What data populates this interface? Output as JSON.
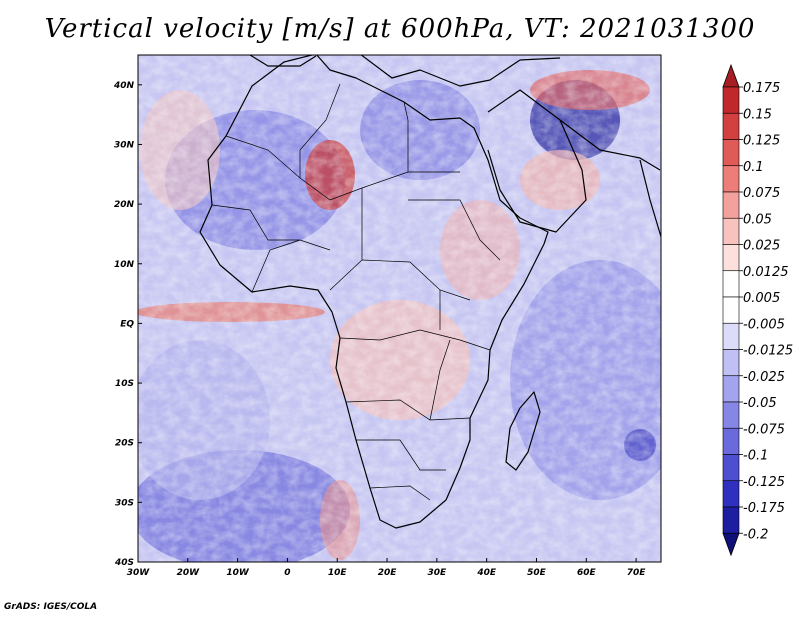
{
  "title": "Vertical velocity [m/s] at 600hPa, VT: 2021031300",
  "footer": "GrADS: IGES/COLA",
  "map": {
    "region": "Africa",
    "lon_range": [
      -30,
      75
    ],
    "lat_range": [
      -40,
      45
    ],
    "x_ticks": [
      "30W",
      "20W",
      "10W",
      "0",
      "10E",
      "20E",
      "30E",
      "40E",
      "50E",
      "60E",
      "70E"
    ],
    "x_tick_values": [
      -30,
      -20,
      -10,
      0,
      10,
      20,
      30,
      40,
      50,
      60,
      70
    ],
    "y_ticks": [
      "40N",
      "30N",
      "20N",
      "10N",
      "EQ",
      "10S",
      "20S",
      "30S",
      "40S"
    ],
    "y_tick_values": [
      40,
      30,
      20,
      10,
      0,
      -10,
      -20,
      -30,
      -40
    ]
  },
  "colorbar": {
    "levels": [
      "0.175",
      "0.15",
      "0.125",
      "0.1",
      "0.075",
      "0.05",
      "0.025",
      "0.0125",
      "0.005",
      "-0.005",
      "-0.0125",
      "-0.025",
      "-0.05",
      "-0.075",
      "-0.1",
      "-0.125",
      "-0.175",
      "-0.2"
    ],
    "colors": [
      "#a61d24",
      "#c0282b",
      "#d2403f",
      "#e05a57",
      "#ec7d78",
      "#f3a19c",
      "#f8c3bf",
      "#fce0dd",
      "#ffffff",
      "#ffffff",
      "#dcdcfa",
      "#c0c0f4",
      "#a3a3ee",
      "#8686e6",
      "#6a6adc",
      "#4e4ed0",
      "#3030c0",
      "#1e1ea0",
      "#10107a"
    ]
  }
}
